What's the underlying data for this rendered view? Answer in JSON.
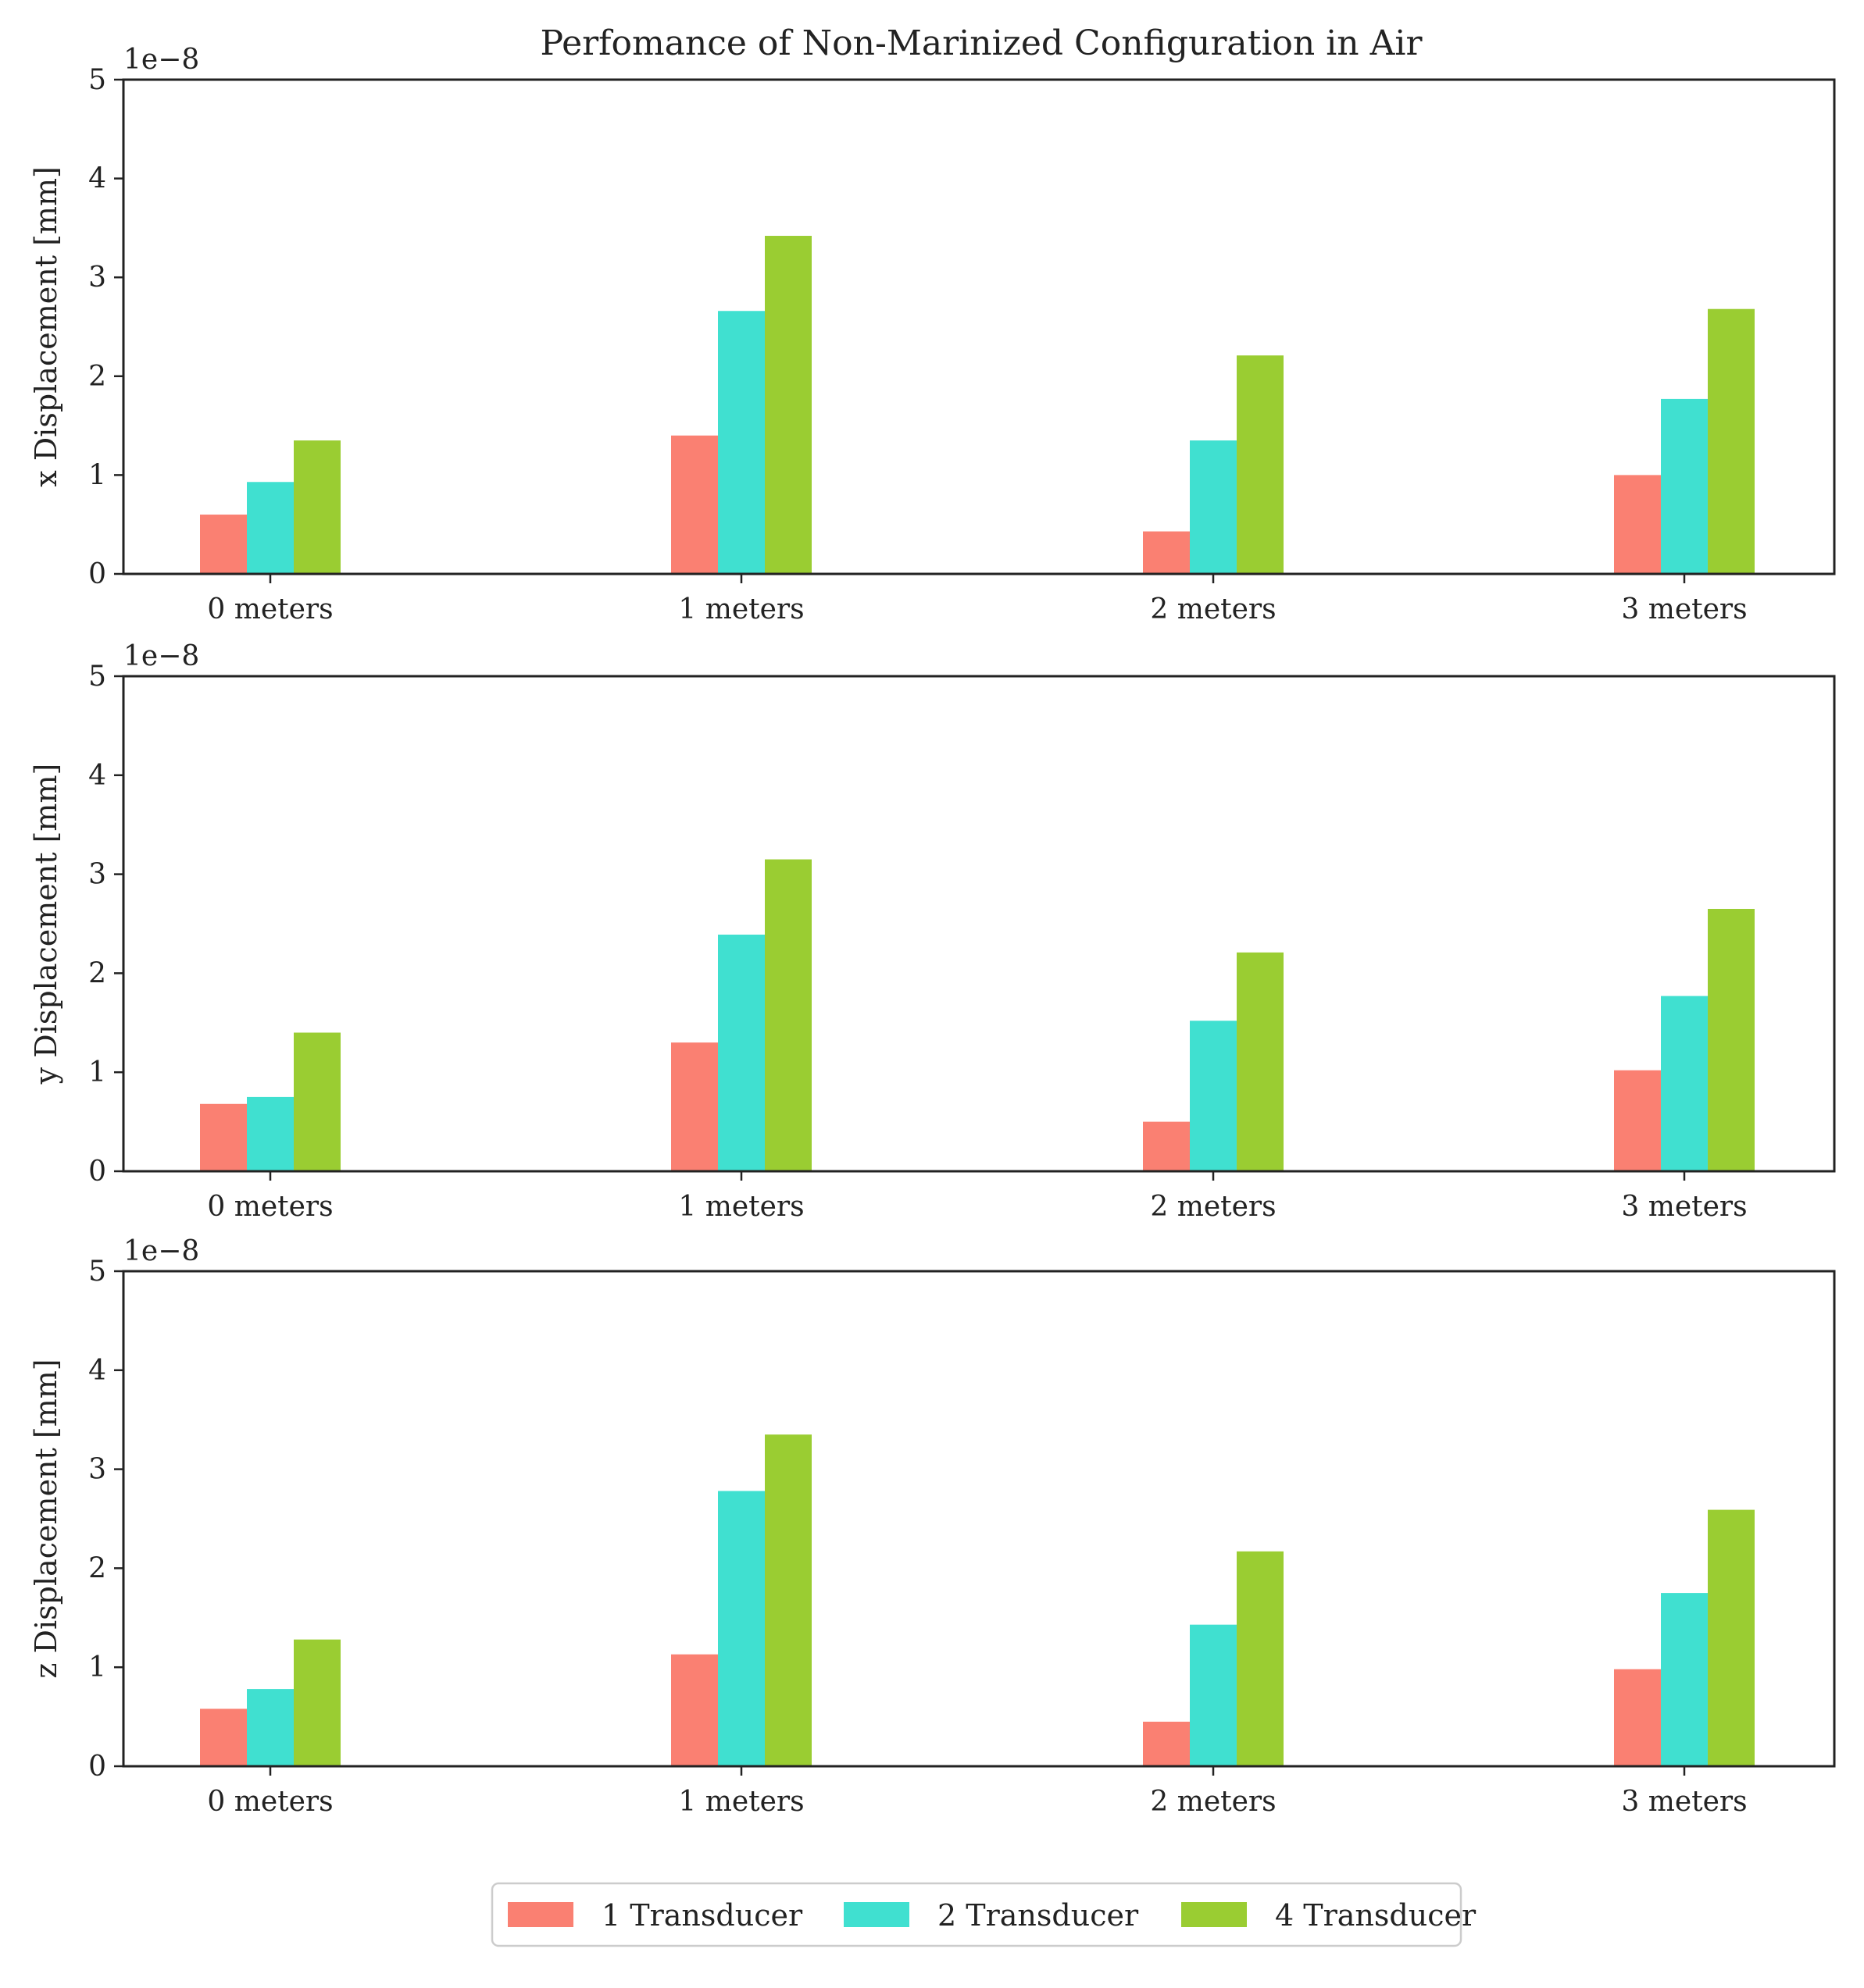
{
  "chart_data": {
    "type": "bar",
    "title": "Perfomance of Non-Marinized Configuration in Air",
    "categories": [
      "0 meters",
      "1 meters",
      "2 meters",
      "3 meters"
    ],
    "ylim": [
      0,
      5
    ],
    "yticks": [
      "0",
      "1",
      "2",
      "3",
      "4",
      "5"
    ],
    "scale_label": "1e−8",
    "legend": {
      "placement": "bottom-center",
      "entries": [
        "1 Transducer",
        "2 Transducer",
        "4 Transducer"
      ]
    },
    "series_colors": [
      "#fa8072",
      "#40e0d0",
      "#9acd32"
    ],
    "subplots": [
      {
        "ylabel": "x Displacement [mm]",
        "series": [
          {
            "name": "1 Transducer",
            "values": [
              0.6,
              1.4,
              0.43,
              1.0
            ]
          },
          {
            "name": "2 Transducer",
            "values": [
              0.93,
              2.66,
              1.35,
              1.77
            ]
          },
          {
            "name": "4 Transducer",
            "values": [
              1.35,
              3.42,
              2.21,
              2.68
            ]
          }
        ]
      },
      {
        "ylabel": "y Displacement [mm]",
        "series": [
          {
            "name": "1 Transducer",
            "values": [
              0.68,
              1.3,
              0.5,
              1.02
            ]
          },
          {
            "name": "2 Transducer",
            "values": [
              0.75,
              2.39,
              1.52,
              1.77
            ]
          },
          {
            "name": "4 Transducer",
            "values": [
              1.4,
              3.15,
              2.21,
              2.65
            ]
          }
        ]
      },
      {
        "ylabel": "z Displacement [mm]",
        "series": [
          {
            "name": "1 Transducer",
            "values": [
              0.58,
              1.13,
              0.45,
              0.98
            ]
          },
          {
            "name": "2 Transducer",
            "values": [
              0.78,
              2.78,
              1.43,
              1.75
            ]
          },
          {
            "name": "4 Transducer",
            "values": [
              1.28,
              3.35,
              2.17,
              2.59
            ]
          }
        ]
      }
    ]
  }
}
